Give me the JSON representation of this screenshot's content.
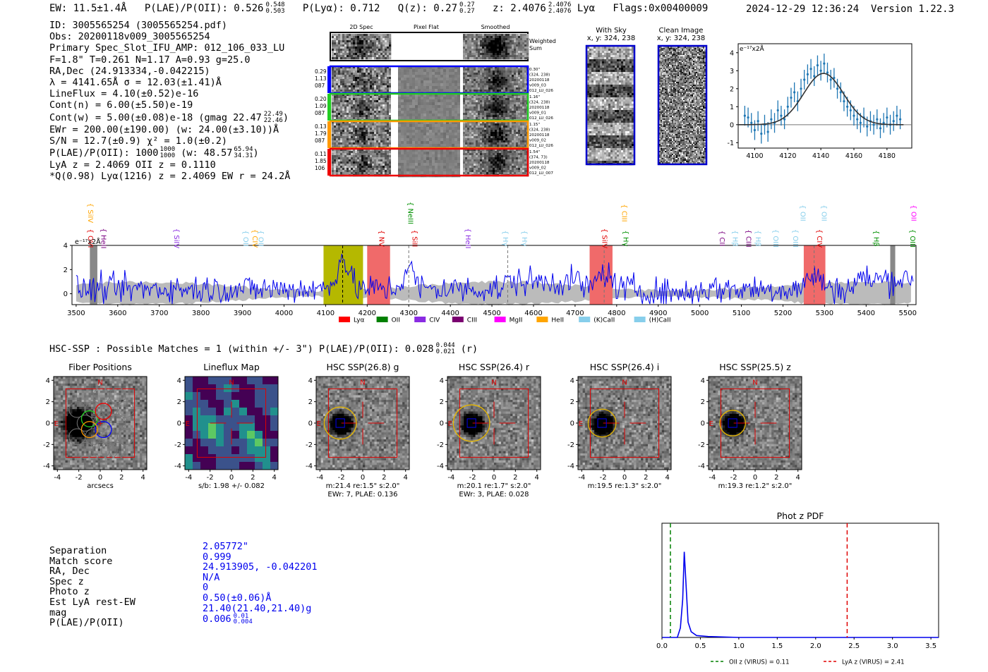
{
  "header": {
    "ew": "EW: 11.5±1.4Å",
    "plae": "P(LAE)/P(OII): 0.526",
    "plae_hi": "0.548",
    "plae_lo": "0.503",
    "plya": "P(Lyα): 0.712",
    "qz": "Q(z): 0.27",
    "qz_hi": "0.27",
    "qz_lo": "0.27",
    "z": "z: 2.4076",
    "z_hi": "2.4076",
    "z_lo": "2.4076",
    "lya": "Lyα",
    "flags": "Flags:0x00400009",
    "timestamp": "2024-12-29 12:36:24",
    "version": "Version 1.22.3"
  },
  "info": {
    "lines": [
      "ID: 3005565254 (3005565254.pdf)",
      "Obs: 20200118v009_3005565254",
      "Primary Spec_Slot_IFU_AMP: 012_106_033_LU",
      "F=1.8\"  T=0.261  N=1.17  A=0.93  g=25.0",
      "RA,Dec (24.913334,-0.042215)",
      "λ = 4141.65Å  σ = 12.03(±1.41)Å",
      "LineFlux = 4.10(±0.52)e-16",
      "Cont(n) = 6.00(±5.50)e-19"
    ],
    "contw": "Cont(w) = 5.00(±0.08)e-18 (gmag 22.47",
    "contw_hi": "22.49",
    "contw_lo": "22.46",
    "contw_end": ")",
    "ewr": "EWr = 200.00(±190.00) (w: 24.00(±3.10))Å",
    "sn": "S/N = 12.7(±0.9)  χ² = 1.0(±0.2)",
    "plae": "P(LAE)/P(OII): 1000",
    "plae_hi": "1000",
    "plae_lo": "1000",
    "plae_w": "(w: 48.57",
    "plae_w_hi": "65.94",
    "plae_w_lo": "34.31",
    "plae_end": ")",
    "lyaz": "LyA z = 2.4069  OII z = 0.1110",
    "q": "*Q(0.98) Lyα(1216) z = 2.4069  EW r = 24.2Å"
  },
  "stamps": {
    "col_titles": [
      "2D Spec",
      "Pixel Flat",
      "Smoothed"
    ],
    "weighted_sum": "Weighted Sum",
    "rows": [
      {
        "left": [
          "0.29",
          "1.13",
          "087"
        ],
        "right": [
          "0.30\"",
          "(324, 238)",
          "20200118",
          "v009_03",
          "012_LU_026"
        ]
      },
      {
        "left": [
          "0.20",
          "1.09",
          "087"
        ],
        "right": [
          "1.16\"",
          "(324, 238)",
          "20200118",
          "v009_01",
          "012_LU_026"
        ]
      },
      {
        "left": [
          "0.13",
          "1.79",
          "087"
        ],
        "right": [
          "1.15\"",
          "(324, 238)",
          "20200118",
          "v009_02",
          "012_LU_026"
        ]
      },
      {
        "left": [
          "0.11",
          "1.85",
          "106"
        ],
        "right": [
          "1.54\"",
          "(374, 73)",
          "20200118",
          "v009_02",
          "012_LU_007"
        ]
      }
    ],
    "row_colors": [
      "#0000ff",
      "#22cc22",
      "#ff9900",
      "#ee0000"
    ],
    "with_sky": "With Sky",
    "with_sky_xy": "x, y: 324, 238",
    "clean": "Clean Image",
    "clean_xy": "x, y: 324, 238"
  },
  "line_fit": {
    "unit": "e⁻¹⁷x2Å",
    "xticks": [
      "4100",
      "4120",
      "4140",
      "4160",
      "4180"
    ],
    "yticks": [
      "4",
      "3",
      "2",
      "1",
      "0",
      "-1"
    ],
    "xlim": [
      4090,
      4195
    ],
    "ylim": [
      -1.3,
      4.5
    ],
    "points": [
      [
        4094,
        0.5
      ],
      [
        4096,
        0.4
      ],
      [
        4098,
        0.1
      ],
      [
        4100,
        -0.3
      ],
      [
        4102,
        0.2
      ],
      [
        4104,
        -0.5
      ],
      [
        4106,
        0.0
      ],
      [
        4108,
        -0.4
      ],
      [
        4110,
        0.3
      ],
      [
        4112,
        0.1
      ],
      [
        4114,
        0.8
      ],
      [
        4116,
        0.5
      ],
      [
        4118,
        0.3
      ],
      [
        4120,
        1.0
      ],
      [
        4122,
        1.5
      ],
      [
        4124,
        1.8
      ],
      [
        4126,
        1.3
      ],
      [
        4128,
        2.0
      ],
      [
        4130,
        2.5
      ],
      [
        4132,
        2.8
      ],
      [
        4134,
        3.1
      ],
      [
        4136,
        2.7
      ],
      [
        4138,
        3.3
      ],
      [
        4140,
        3.0
      ],
      [
        4142,
        3.4
      ],
      [
        4144,
        2.9
      ],
      [
        4146,
        2.5
      ],
      [
        4148,
        2.6
      ],
      [
        4150,
        2.0
      ],
      [
        4152,
        1.8
      ],
      [
        4154,
        1.3
      ],
      [
        4156,
        1.0
      ],
      [
        4158,
        0.8
      ],
      [
        4160,
        0.5
      ],
      [
        4162,
        0.3
      ],
      [
        4164,
        0.1
      ],
      [
        4166,
        0.4
      ],
      [
        4168,
        -0.1
      ],
      [
        4170,
        0.2
      ],
      [
        4172,
        0.0
      ],
      [
        4174,
        0.3
      ],
      [
        4176,
        -0.2
      ],
      [
        4178,
        0.1
      ],
      [
        4180,
        0.4
      ],
      [
        4182,
        0.0
      ],
      [
        4184,
        0.2
      ],
      [
        4186,
        0.5
      ],
      [
        4188,
        0.3
      ]
    ],
    "fit": {
      "center": 4141.65,
      "sigma": 12.03,
      "amp": 2.85
    }
  },
  "spectrum": {
    "unit": "e⁻¹⁷x2Å",
    "xlim": [
      3490,
      5520
    ],
    "ylim": [
      -0.9,
      4.0
    ],
    "xticks": [
      "3500",
      "3600",
      "3700",
      "3800",
      "3900",
      "4000",
      "4100",
      "4200",
      "4300",
      "4400",
      "4500",
      "4600",
      "4700",
      "4800",
      "4900",
      "5000",
      "5100",
      "5200",
      "5300",
      "5400",
      "5500"
    ],
    "yticks": [
      "4",
      "2",
      "0"
    ],
    "yellow_band": [
      4095,
      4190
    ],
    "red_bands": [
      [
        4200,
        4255
      ],
      [
        4735,
        4790
      ],
      [
        5250,
        5302
      ]
    ],
    "gray_bands": [
      [
        3533,
        3551
      ],
      [
        5458,
        5470
      ]
    ],
    "dash_lines": [
      [
        4141,
        "#000"
      ],
      [
        4300,
        "#777"
      ],
      [
        4538,
        "#777"
      ],
      [
        4770,
        "#777"
      ],
      [
        5275,
        "#777"
      ]
    ],
    "lines": [
      {
        "name": "SiIV",
        "x": 3522,
        "row": 0,
        "color": "#ffa500"
      },
      {
        "name": "OVI",
        "x": 3522,
        "row": 2,
        "color": "#e00000"
      },
      {
        "name": "HeII",
        "x": 3554,
        "row": 2,
        "color": "#7a0080"
      },
      {
        "name": "SiIV",
        "x": 3729,
        "row": 2,
        "color": "#8a2be2"
      },
      {
        "name": "OII",
        "x": 3896,
        "row": 2,
        "color": "#87ceeb"
      },
      {
        "name": "CIV",
        "x": 3918,
        "row": 2,
        "color": "#ffa500"
      },
      {
        "name": "OII",
        "x": 3932,
        "row": 2,
        "color": "#87ceeb"
      },
      {
        "name": "NeIII",
        "x": 4292,
        "row": 0,
        "color": "#009000"
      },
      {
        "name": "NV",
        "x": 4222,
        "row": 2,
        "color": "#e00000"
      },
      {
        "name": "SiII",
        "x": 4302,
        "row": 2,
        "color": "#e00000"
      },
      {
        "name": "HeII",
        "x": 4430,
        "row": 2,
        "color": "#8a2be2"
      },
      {
        "name": "Hγ",
        "x": 4520,
        "row": 2,
        "color": "#87ceeb"
      },
      {
        "name": "Hγ",
        "x": 4566,
        "row": 2,
        "color": "#87ceeb"
      },
      {
        "name": "CIII",
        "x": 4806,
        "row": 0,
        "color": "#ffa500"
      },
      {
        "name": "SiIV",
        "x": 4759,
        "row": 2,
        "color": "#e00000"
      },
      {
        "name": "Hγ",
        "x": 4810,
        "row": 2,
        "color": "#009000"
      },
      {
        "name": "OII",
        "x": 5236,
        "row": 0,
        "color": "#87ceeb"
      },
      {
        "name": "OII",
        "x": 5287,
        "row": 0,
        "color": "#87ceeb"
      },
      {
        "name": "CII",
        "x": 5041,
        "row": 2,
        "color": "#7a0080"
      },
      {
        "name": "Hβ",
        "x": 5073,
        "row": 2,
        "color": "#87ceeb"
      },
      {
        "name": "CIII",
        "x": 5105,
        "row": 2,
        "color": "#7a0080"
      },
      {
        "name": "Hβ",
        "x": 5128,
        "row": 2,
        "color": "#87ceeb"
      },
      {
        "name": "OIII",
        "x": 5170,
        "row": 2,
        "color": "#87ceeb"
      },
      {
        "name": "OIII",
        "x": 5218,
        "row": 2,
        "color": "#87ceeb"
      },
      {
        "name": "CIV",
        "x": 5276,
        "row": 2,
        "color": "#e00000"
      },
      {
        "name": "OII",
        "x": 5502,
        "row": 0,
        "color": "#ff00ff"
      },
      {
        "name": "Hβ",
        "x": 5412,
        "row": 2,
        "color": "#009000"
      },
      {
        "name": "OIII",
        "x": 5500,
        "row": 2,
        "color": "#009000"
      }
    ],
    "legend": [
      {
        "label": "Lyα",
        "color": "#ff0000"
      },
      {
        "label": "OII",
        "color": "#008000"
      },
      {
        "label": "CIV",
        "color": "#8a2be2"
      },
      {
        "label": "CIII",
        "color": "#7a0070"
      },
      {
        "label": "MgII",
        "color": "#ff00ff"
      },
      {
        "label": "HeII",
        "color": "#ffa500"
      },
      {
        "label": "(K)CaII",
        "color": "#87ceeb"
      },
      {
        "label": "(H)CaII",
        "color": "#87ceeb"
      }
    ]
  },
  "hsc": {
    "title": "HSC-SSP : Possible Matches = 1 (within +/- 3\")  P(LAE)/P(OII): 0.028",
    "title_hi": "0.044",
    "title_lo": "0.021",
    "title_end": "(r)",
    "panels": [
      {
        "title": "Fiber Positions",
        "caption1": "arcsecs",
        "caption2": ""
      },
      {
        "title": "Lineflux Map",
        "caption1": "s/b: 1.98 +/- 0.082",
        "caption2": ""
      },
      {
        "title": "HSC SSP(26.8) g",
        "caption1": "m:21.4  re:1.5\"  s:2.0\"",
        "caption2": "EWr: 7, PLAE: 0.136"
      },
      {
        "title": "HSC SSP(26.4) r",
        "caption1": "m:20.1  re:1.7\"  s:2.0\"",
        "caption2": "EWr: 3, PLAE: 0.028"
      },
      {
        "title": "HSC SSP(26.4) i",
        "caption1": "m:19.5  re:1.3\"  s:2.0\"",
        "caption2": ""
      },
      {
        "title": "HSC SSP(25.5) z",
        "caption1": "m:19.3  re:1.2\"  s:2.0\"",
        "caption2": ""
      }
    ],
    "ticks": [
      "4",
      "2",
      "0",
      "-2",
      "-4"
    ],
    "xticks": [
      "-4",
      "-2",
      "0",
      "2",
      "4"
    ],
    "n_label": "N",
    "e_label": "E"
  },
  "match": {
    "labels": [
      "Separation",
      "Match score",
      "RA, Dec",
      "Spec z",
      "Photo z",
      "Est LyA rest-EW",
      "mag",
      "P(LAE)/P(OII)"
    ],
    "values": [
      "2.05772\"",
      "0.999",
      "24.913905, -0.042201",
      "N/A",
      "0",
      "0.50(±0.06)Å",
      "21.40(21.40,21.40)g",
      "0.006"
    ],
    "plae_hi": "0.01",
    "plae_lo": "0.004"
  },
  "chart_data": [
    {
      "type": "line",
      "title": "Phot z PDF",
      "xlabel": "",
      "ylabel": "",
      "xlim": [
        0,
        3.6
      ],
      "xticks": [
        "0.0",
        "0.5",
        "1.0",
        "1.5",
        "2.0",
        "2.5",
        "3.0",
        "3.5"
      ],
      "series": [
        {
          "name": "PDF",
          "x": [
            0,
            0.2,
            0.24,
            0.27,
            0.29,
            0.31,
            0.34,
            0.38,
            0.45,
            0.6,
            1.0,
            3.6
          ],
          "values": [
            0,
            0,
            0.05,
            0.2,
            0.45,
            0.3,
            0.08,
            0.03,
            0.01,
            0.005,
            0,
            0
          ]
        }
      ],
      "vlines": [
        {
          "x": 0.11,
          "color": "#008000",
          "label": "OII z (VIRUS) = 0.11"
        },
        {
          "x": 2.41,
          "color": "#e00000",
          "label": "LyA z (VIRUS) = 2.41"
        }
      ]
    }
  ]
}
